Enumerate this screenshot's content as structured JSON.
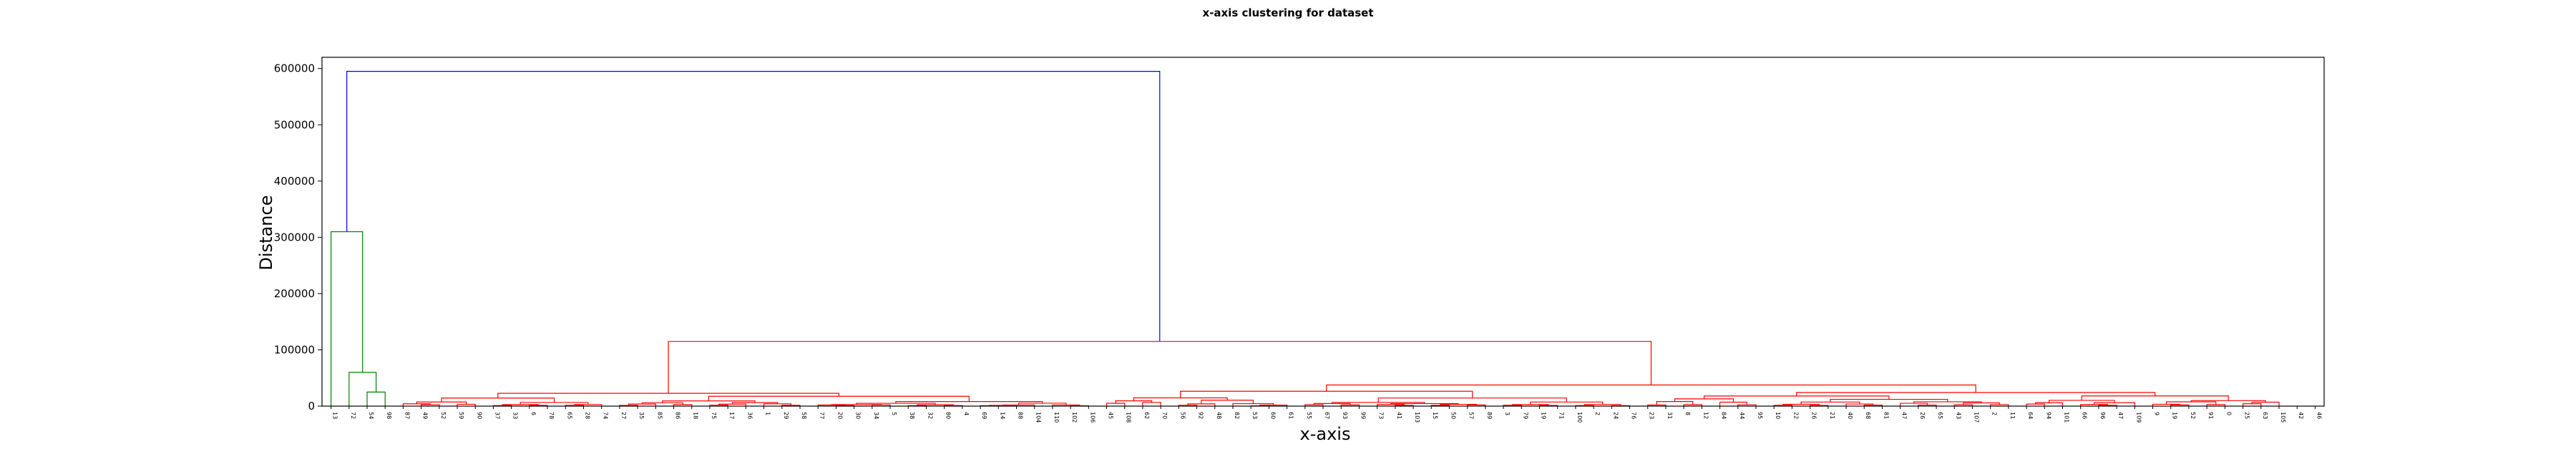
{
  "chart_data": {
    "type": "dendrogram",
    "title": "x-axis clustering for dataset",
    "xlabel": "x-axis",
    "ylabel": "Distance",
    "ylim": [
      0,
      620000
    ],
    "y_ticks": [
      0,
      100000,
      200000,
      300000,
      400000,
      500000,
      600000
    ],
    "grid": false,
    "legend": "none",
    "colors": {
      "top": "#0000ff",
      "cluster_1": "#008000",
      "cluster_2": "#ff0000"
    },
    "leaves": [
      "13",
      "72",
      "54",
      "98",
      "87",
      "49",
      "52",
      "59",
      "90",
      "37",
      "33",
      "6",
      "78",
      "65",
      "28",
      "74",
      "27",
      "35",
      "85",
      "86",
      "18",
      "75",
      "17",
      "36",
      "1",
      "29",
      "58",
      "77",
      "20",
      "30",
      "34",
      "5",
      "38",
      "32",
      "80",
      "4",
      "69",
      "14",
      "88",
      "104",
      "110",
      "102",
      "106",
      "45",
      "108",
      "62",
      "70",
      "56",
      "92",
      "48",
      "82",
      "53",
      "60",
      "61",
      "55",
      "67",
      "93",
      "99",
      "73",
      "41",
      "103",
      "15",
      "50",
      "57",
      "89",
      "3",
      "79",
      "19",
      "71",
      "100",
      "2",
      "24",
      "76",
      "23",
      "31",
      "8",
      "12",
      "84",
      "44",
      "95",
      "10",
      "22",
      "26",
      "21",
      "40",
      "68",
      "81",
      "47",
      "26",
      "65",
      "43",
      "107",
      "2",
      "11",
      "64",
      "94",
      "101",
      "66",
      "96",
      "47",
      "109",
      "9",
      "19",
      "52",
      "91",
      "0",
      "25",
      "63",
      "105",
      "42",
      "46"
    ],
    "top_merge": 595000,
    "cluster_1": {
      "leaves": [
        "13",
        "72",
        "54",
        "98"
      ],
      "merges": [
        25000,
        60000,
        310000
      ]
    },
    "cluster_2": {
      "leaf_range": [
        4,
        108
      ],
      "top_merge": 115000,
      "sub_merges": [
        25000,
        35000,
        15000,
        20000,
        28000,
        18000,
        12000
      ]
    }
  }
}
